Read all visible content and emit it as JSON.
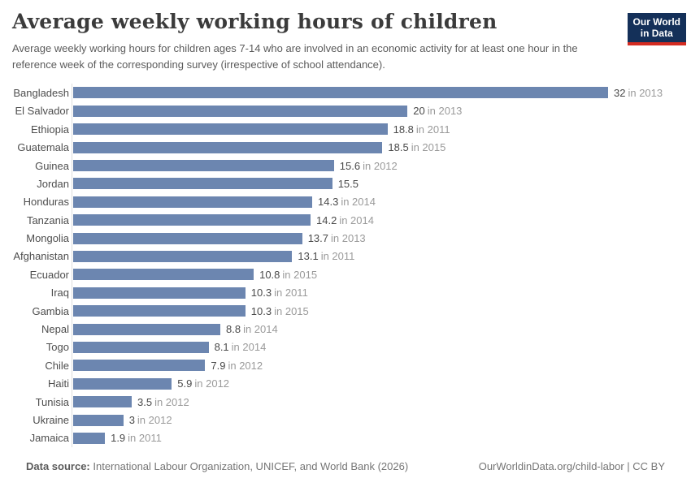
{
  "header": {
    "title": "Average weekly working hours of children",
    "subtitle": "Average weekly working hours for children ages 7-14 who are involved in an economic activity for at least one hour in the reference week of the corresponding survey (irrespective of school attendance).",
    "logo": {
      "line1": "Our World",
      "line2": "in Data"
    }
  },
  "chart_data": {
    "type": "bar",
    "orientation": "horizontal",
    "title": "Average weekly working hours of children",
    "xlabel": "",
    "ylabel": "",
    "xlim": [
      0,
      32
    ],
    "grid": false,
    "legend": false,
    "unit": "hours per week",
    "categories": [
      "Bangladesh",
      "El Salvador",
      "Ethiopia",
      "Guatemala",
      "Guinea",
      "Jordan",
      "Honduras",
      "Tanzania",
      "Mongolia",
      "Afghanistan",
      "Ecuador",
      "Iraq",
      "Gambia",
      "Nepal",
      "Togo",
      "Chile",
      "Haiti",
      "Tunisia",
      "Ukraine",
      "Jamaica"
    ],
    "values": [
      32,
      20,
      18.8,
      18.5,
      15.6,
      15.5,
      14.3,
      14.2,
      13.7,
      13.1,
      10.8,
      10.3,
      10.3,
      8.8,
      8.1,
      7.9,
      5.9,
      3.5,
      3,
      1.9
    ],
    "rows": [
      {
        "country": "Bangladesh",
        "value": 32,
        "value_label": "32",
        "year_label": "in 2013"
      },
      {
        "country": "El Salvador",
        "value": 20,
        "value_label": "20",
        "year_label": "in 2013"
      },
      {
        "country": "Ethiopia",
        "value": 18.8,
        "value_label": "18.8",
        "year_label": "in 2011"
      },
      {
        "country": "Guatemala",
        "value": 18.5,
        "value_label": "18.5",
        "year_label": "in 2015"
      },
      {
        "country": "Guinea",
        "value": 15.6,
        "value_label": "15.6",
        "year_label": "in 2012"
      },
      {
        "country": "Jordan",
        "value": 15.5,
        "value_label": "15.5",
        "year_label": ""
      },
      {
        "country": "Honduras",
        "value": 14.3,
        "value_label": "14.3",
        "year_label": "in 2014"
      },
      {
        "country": "Tanzania",
        "value": 14.2,
        "value_label": "14.2",
        "year_label": "in 2014"
      },
      {
        "country": "Mongolia",
        "value": 13.7,
        "value_label": "13.7",
        "year_label": "in 2013"
      },
      {
        "country": "Afghanistan",
        "value": 13.1,
        "value_label": "13.1",
        "year_label": "in 2011"
      },
      {
        "country": "Ecuador",
        "value": 10.8,
        "value_label": "10.8",
        "year_label": "in 2015"
      },
      {
        "country": "Iraq",
        "value": 10.3,
        "value_label": "10.3",
        "year_label": "in 2011"
      },
      {
        "country": "Gambia",
        "value": 10.3,
        "value_label": "10.3",
        "year_label": "in 2015"
      },
      {
        "country": "Nepal",
        "value": 8.8,
        "value_label": "8.8",
        "year_label": "in 2014"
      },
      {
        "country": "Togo",
        "value": 8.1,
        "value_label": "8.1",
        "year_label": "in 2014"
      },
      {
        "country": "Chile",
        "value": 7.9,
        "value_label": "7.9",
        "year_label": "in 2012"
      },
      {
        "country": "Haiti",
        "value": 5.9,
        "value_label": "5.9",
        "year_label": "in 2012"
      },
      {
        "country": "Tunisia",
        "value": 3.5,
        "value_label": "3.5",
        "year_label": "in 2012"
      },
      {
        "country": "Ukraine",
        "value": 3,
        "value_label": "3",
        "year_label": "in 2012"
      },
      {
        "country": "Jamaica",
        "value": 1.9,
        "value_label": "1.9",
        "year_label": "in 2011"
      }
    ]
  },
  "footer": {
    "source_label": "Data source:",
    "source_text": "International Labour Organization, UNICEF, and World Bank (2026)",
    "credit": "OurWorldinData.org/child-labor | CC BY"
  },
  "colors": {
    "bar": "#6c86b0",
    "title": "#3b3b3b",
    "subtitle": "#5b5b5b",
    "country_label": "#4e4e4e",
    "value": "#4a4a4a",
    "year": "#9a9a9a",
    "axis_line": "#dddddd",
    "logo_bg": "#143059",
    "logo_accent": "#d42b21",
    "footer_text": "#757575"
  }
}
